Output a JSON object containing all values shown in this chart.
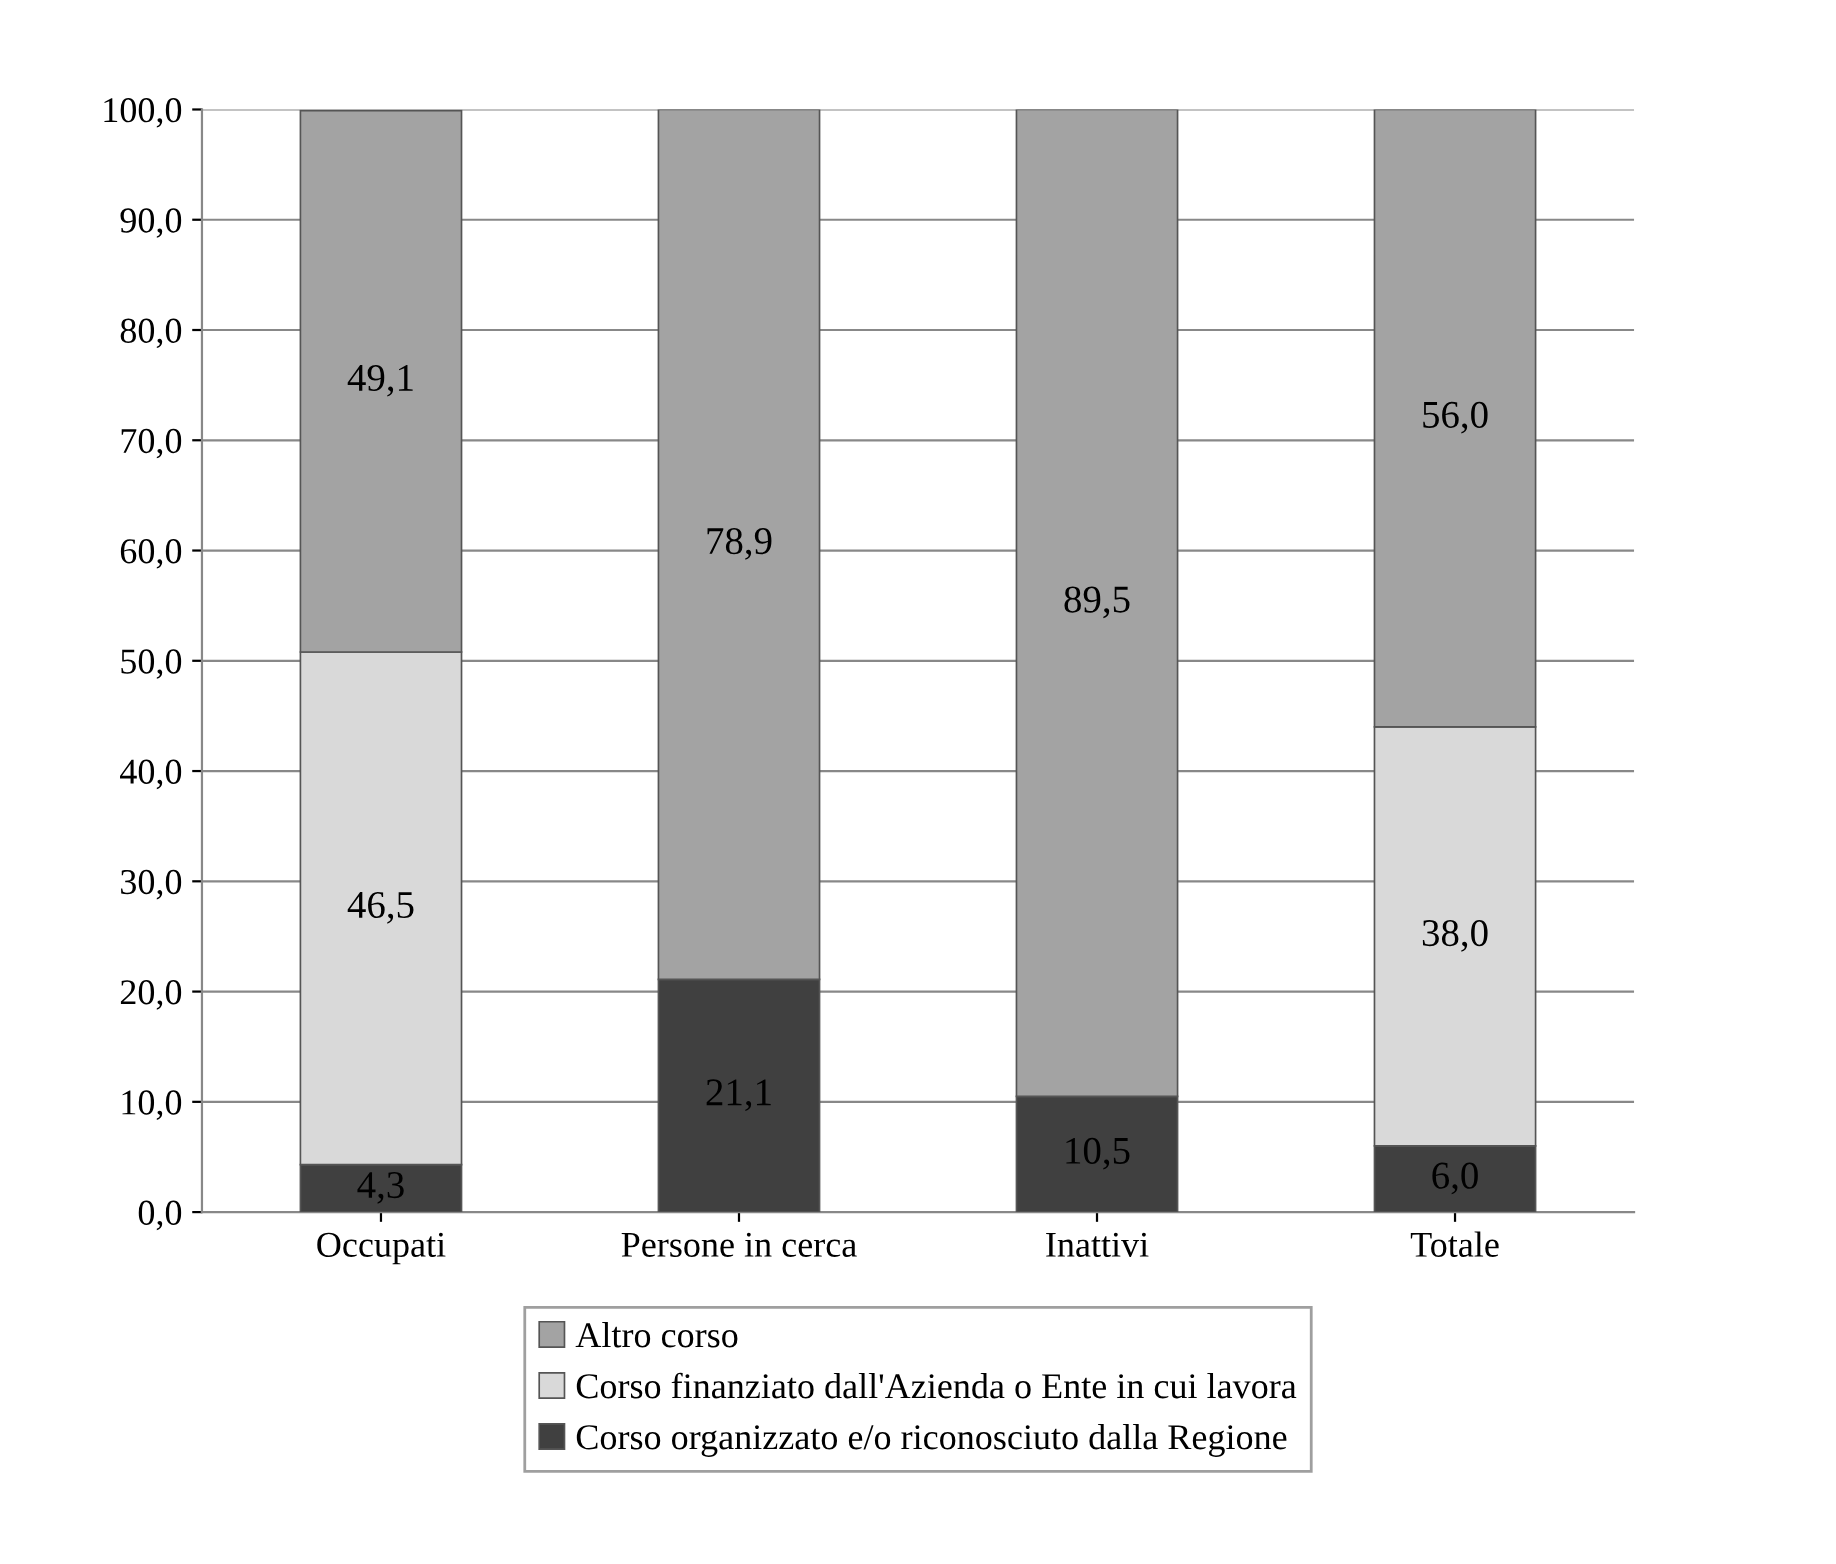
{
  "chart_data": {
    "type": "bar",
    "stacked": true,
    "categories": [
      "Occupati",
      "Persone in cerca",
      "Inattivi",
      "Totale"
    ],
    "series": [
      {
        "name": "Corso organizzato e/o riconosciuto dalla Regione",
        "color": "#404040",
        "values": [
          4.3,
          21.1,
          10.5,
          6.0
        ],
        "value_labels": [
          "4,3",
          "21,1",
          "10,5",
          "6,0"
        ]
      },
      {
        "name": "Corso finanziato dall'Azienda o Ente in cui lavora",
        "color": "#d9d9d9",
        "values": [
          46.5,
          null,
          null,
          38.0
        ],
        "value_labels": [
          "46,5",
          null,
          null,
          "38,0"
        ]
      },
      {
        "name": "Altro corso",
        "color": "#a3a3a3",
        "values": [
          49.1,
          78.9,
          89.5,
          56.0
        ],
        "value_labels": [
          "49,1",
          "78,9",
          "89,5",
          "56,0"
        ]
      }
    ],
    "ylim": [
      0,
      100
    ],
    "yticks": [
      {
        "value": 0,
        "label": "0,0"
      },
      {
        "value": 10,
        "label": "10,0"
      },
      {
        "value": 20,
        "label": "20,0"
      },
      {
        "value": 30,
        "label": "30,0"
      },
      {
        "value": 40,
        "label": "40,0"
      },
      {
        "value": 50,
        "label": "50,0"
      },
      {
        "value": 60,
        "label": "60,0"
      },
      {
        "value": 70,
        "label": "70,0"
      },
      {
        "value": 80,
        "label": "80,0"
      },
      {
        "value": 90,
        "label": "90,0"
      },
      {
        "value": 100,
        "label": "100,0"
      }
    ],
    "grid": "y",
    "legend": "bottom"
  }
}
